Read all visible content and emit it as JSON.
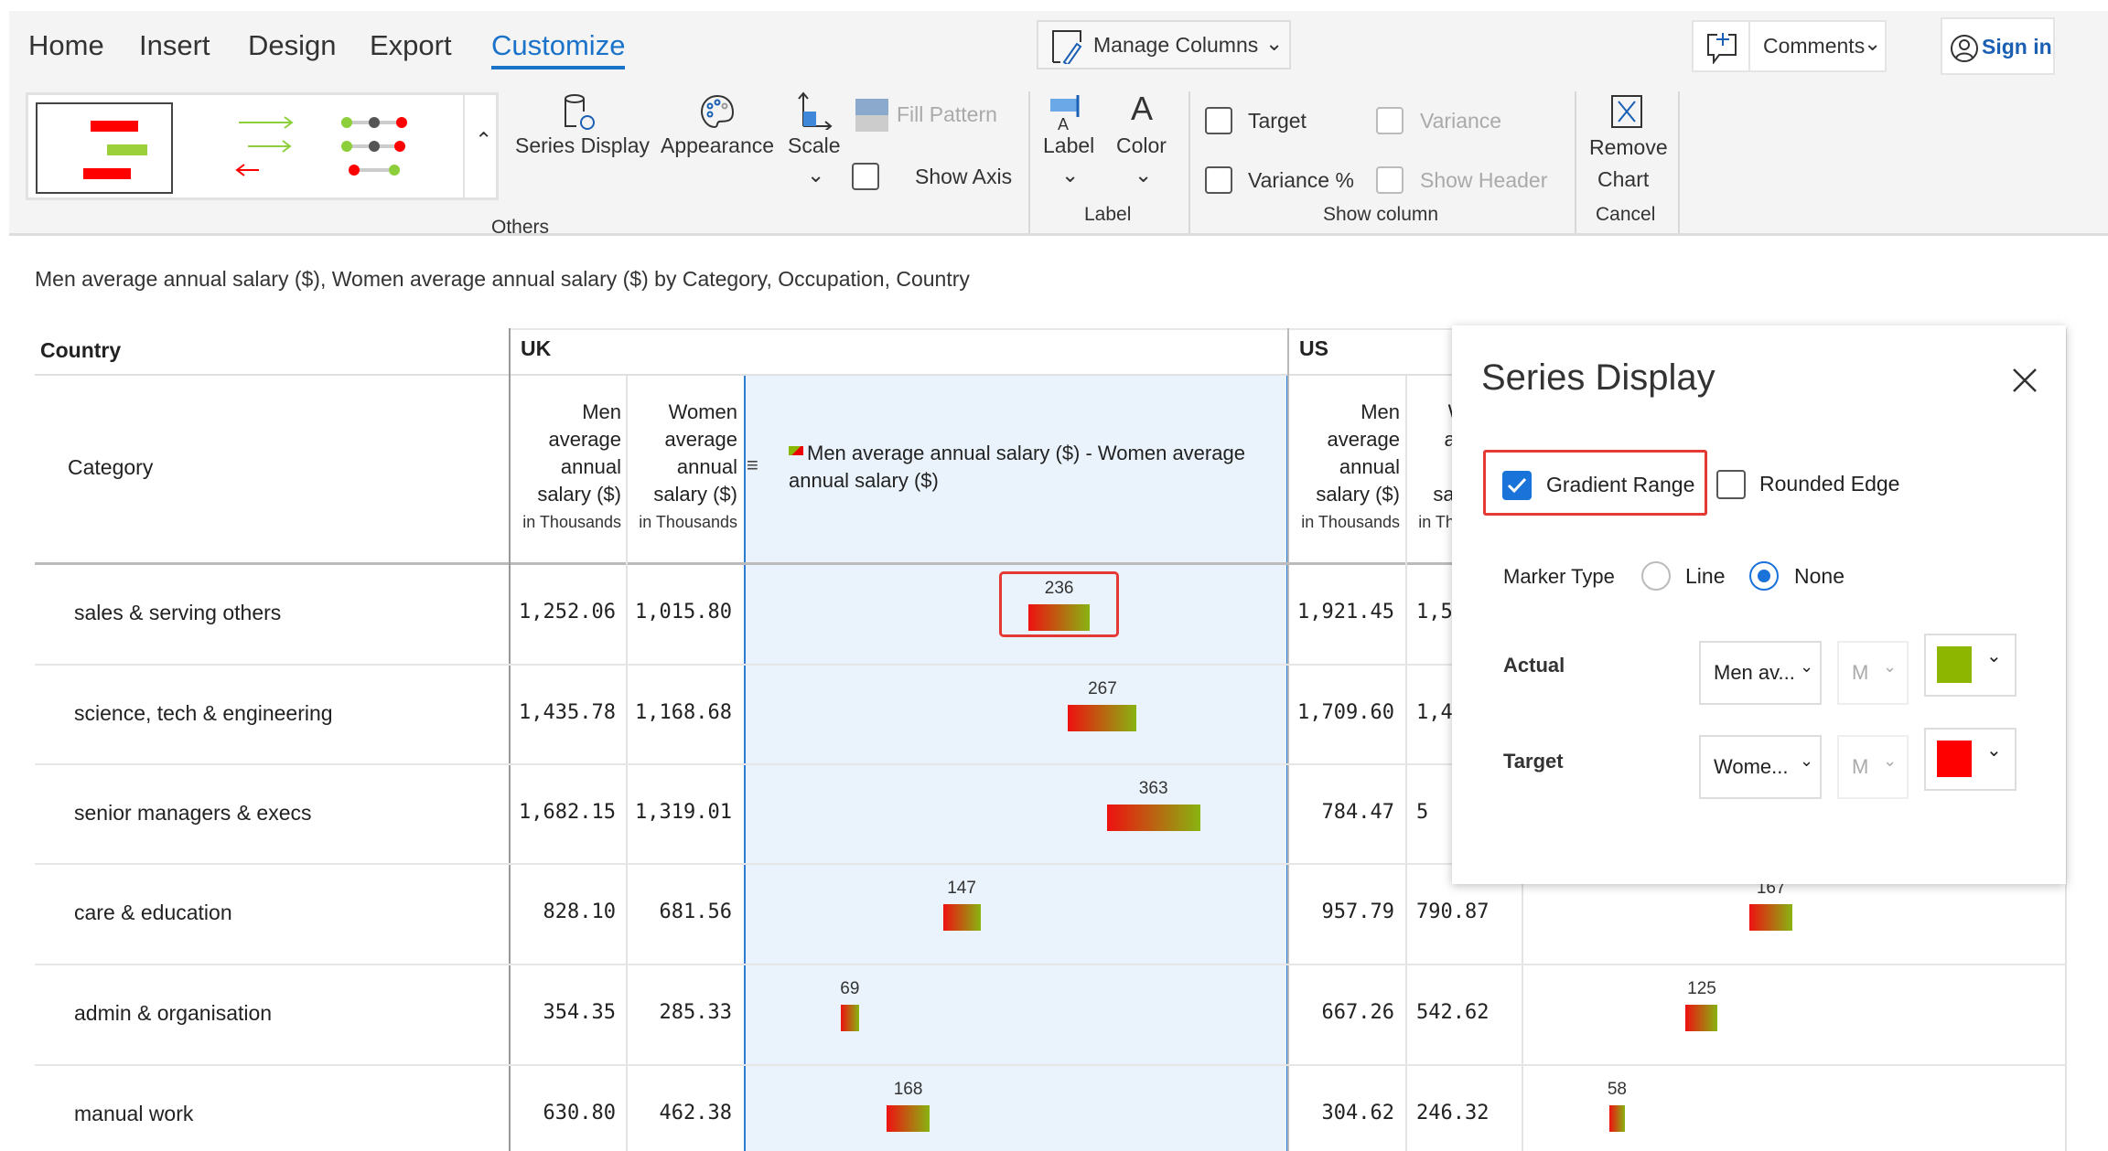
{
  "tabs": [
    "Home",
    "Insert",
    "Design",
    "Export",
    "Customize"
  ],
  "ribbon": {
    "manage_columns": "Manage Columns",
    "comments": "Comments",
    "sign_in": "Sign in",
    "series_display": "Series Display",
    "appearance": "Appearance",
    "scale": "Scale",
    "fill_pattern": "Fill Pattern",
    "show_axis": "Show Axis",
    "others": "Others",
    "label_btn": "Label",
    "color_btn": "Color",
    "label_group": "Label",
    "target": "Target",
    "variance": "Variance",
    "variance_pct": "Variance %",
    "show_header": "Show Header",
    "show_column": "Show column",
    "remove": "Remove",
    "chart": "Chart",
    "cancel": "Cancel"
  },
  "subtitle": "Men average annual salary ($), Women average annual salary ($) by Category, Occupation, Country",
  "table": {
    "country_label": "Country",
    "category_label": "Category",
    "countries": [
      "UK",
      "US"
    ],
    "men_header": [
      "Men",
      "average",
      "annual",
      "salary ($)"
    ],
    "women_header": [
      "Women",
      "average",
      "annual",
      "salary ($)"
    ],
    "unit": "in Thousands",
    "chart_header": "Men average annual salary ($) - Women average annual salary ($)",
    "rows": [
      {
        "category": "sales & serving others",
        "uk_men": "1,252.06",
        "uk_women": "1,015.80",
        "us_men": "1,921.45",
        "us_women": "1,5"
      },
      {
        "category": "science, tech & engineering",
        "uk_men": "1,435.78",
        "uk_women": "1,168.68",
        "us_men": "1,709.60",
        "us_women": "1,4"
      },
      {
        "category": "senior managers & execs",
        "uk_men": "1,682.15",
        "uk_women": "1,319.01",
        "us_men": "784.47",
        "us_women": "5"
      },
      {
        "category": "care & education",
        "uk_men": "828.10",
        "uk_women": "681.56",
        "us_men": "957.79",
        "us_women": "790.87"
      },
      {
        "category": "admin & organisation",
        "uk_men": "354.35",
        "uk_women": "285.33",
        "us_men": "667.26",
        "us_women": "542.62"
      },
      {
        "category": "manual work",
        "uk_men": "630.80",
        "uk_women": "462.38",
        "us_men": "304.62",
        "us_women": "246.32"
      }
    ]
  },
  "chart_data": {
    "type": "bar",
    "title": "Men average annual salary ($) - Women average annual salary ($)",
    "categories": [
      "sales & serving others",
      "science, tech & engineering",
      "senior managers & execs",
      "care & education",
      "admin & organisation",
      "manual work"
    ],
    "series": [
      {
        "name": "UK",
        "start": [
          1015.8,
          1168.68,
          1319.01,
          681.56,
          285.33,
          462.38
        ],
        "end": [
          1252.06,
          1435.78,
          1682.15,
          828.1,
          354.35,
          630.8
        ],
        "labels": [
          "236",
          "267",
          "363",
          "147",
          "69",
          "168"
        ]
      },
      {
        "name": "US",
        "start": [
          null,
          null,
          null,
          790.87,
          542.62,
          246.32
        ],
        "end": [
          null,
          null,
          null,
          957.79,
          667.26,
          304.62
        ],
        "labels": [
          null,
          null,
          null,
          "167",
          "125",
          "58"
        ]
      }
    ],
    "colors": {
      "actual": "#8db600",
      "target": "#ff0000"
    }
  },
  "panel": {
    "title": "Series Display",
    "gradient_range": "Gradient Range",
    "gradient_checked": true,
    "rounded_edge": "Rounded Edge",
    "marker_type": "Marker Type",
    "marker_line": "Line",
    "marker_none": "None",
    "actual": "Actual",
    "actual_value": "Men av...",
    "target": "Target",
    "target_value": "Wome...",
    "m": "M",
    "actual_color": "#8db600",
    "target_color": "#ff0000"
  }
}
